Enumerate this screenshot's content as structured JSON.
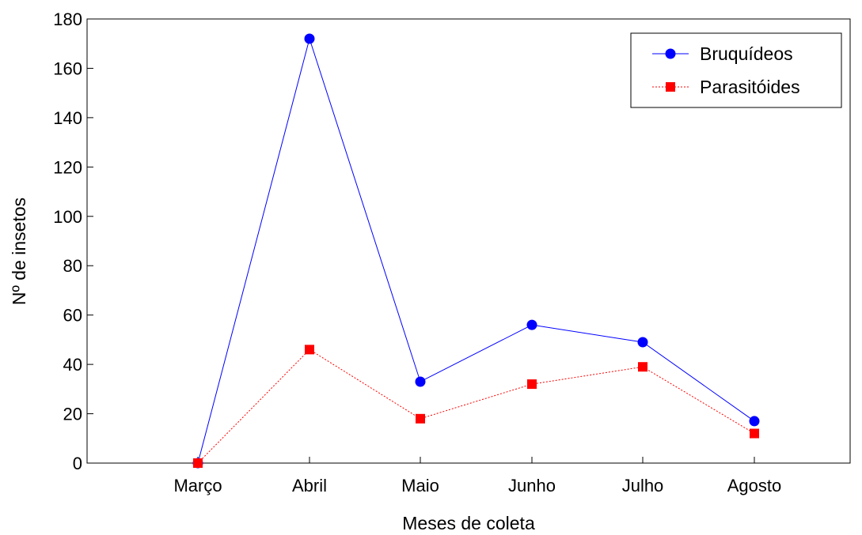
{
  "chart_data": {
    "type": "line",
    "title": "",
    "xlabel": "Meses de coleta",
    "ylabel": "Nº de insetos",
    "categories": [
      "Março",
      "Abril",
      "Maio",
      "Junho",
      "Julho",
      "Agosto"
    ],
    "ylim": [
      0,
      180
    ],
    "yticks": [
      0,
      20,
      40,
      60,
      80,
      100,
      120,
      140,
      160,
      180
    ],
    "grid": false,
    "legend_position": "top-right",
    "series": [
      {
        "name": "Bruquídeos",
        "values": [
          0,
          172,
          33,
          56,
          49,
          17
        ],
        "color": "#0000ff",
        "marker": "circle",
        "line_style": "solid"
      },
      {
        "name": "Parasitóides",
        "values": [
          0,
          46,
          18,
          32,
          39,
          12
        ],
        "color": "#ff0000",
        "marker": "square",
        "line_style": "dotted"
      }
    ]
  }
}
